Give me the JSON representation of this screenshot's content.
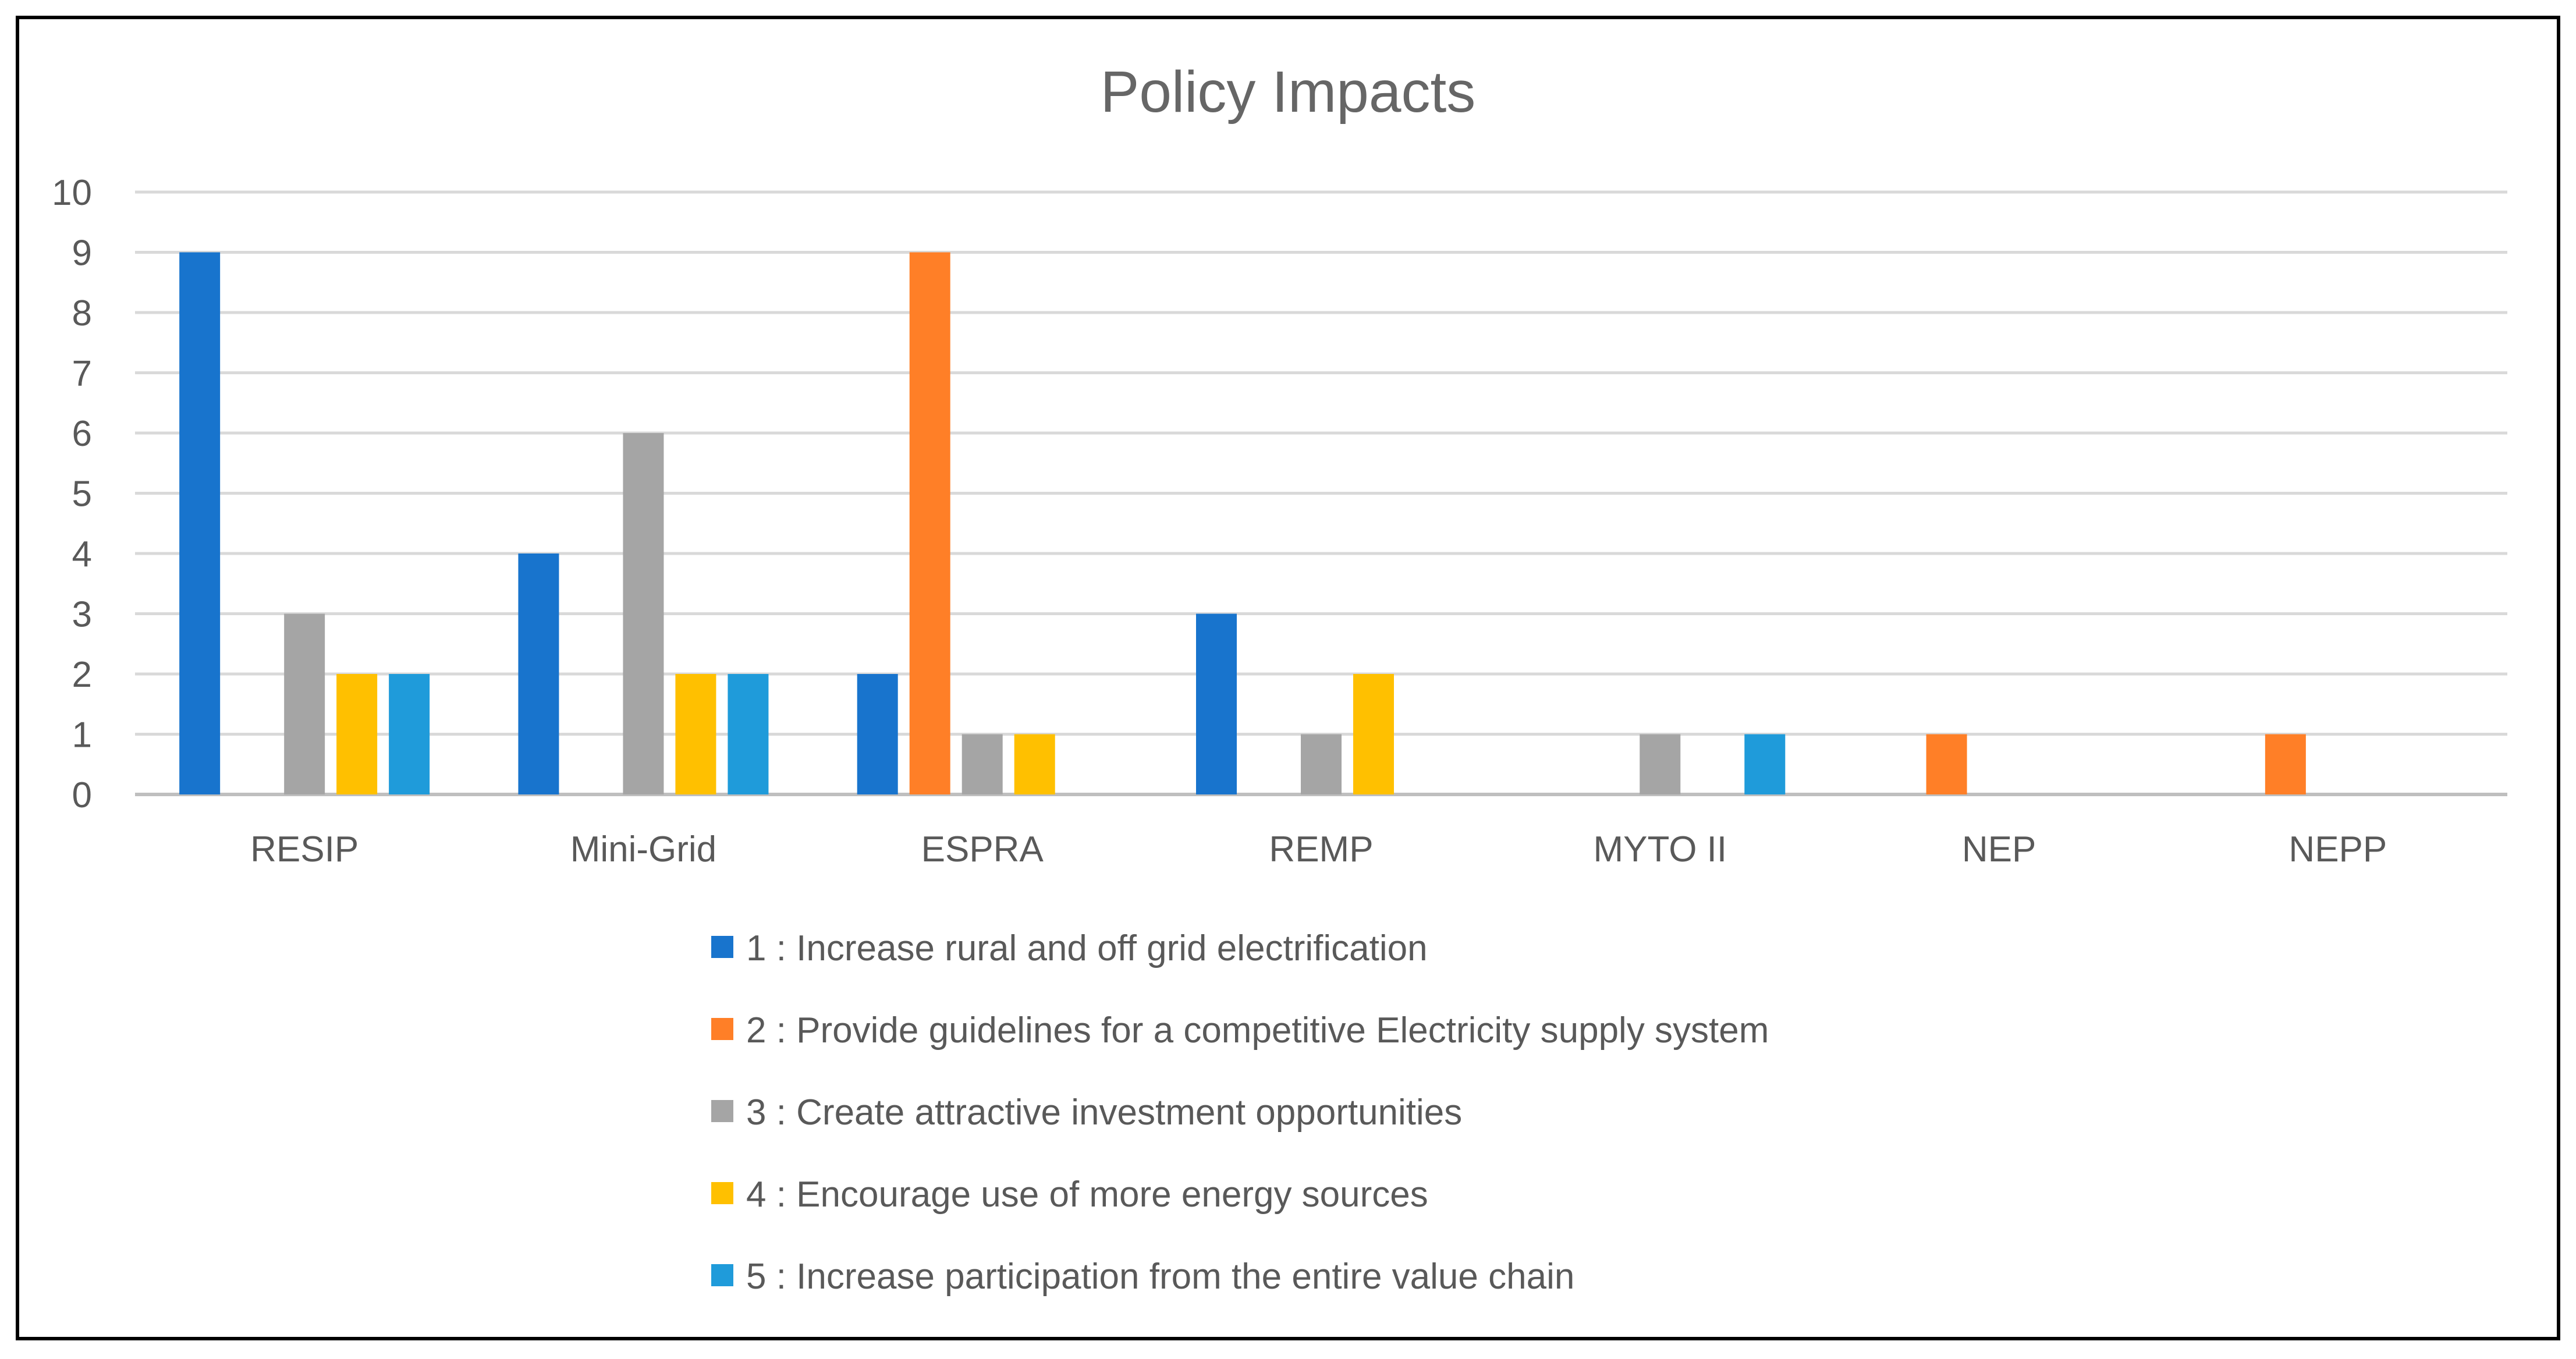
{
  "chart_data": {
    "type": "bar",
    "title": "Policy Impacts",
    "xlabel": "",
    "ylabel": "",
    "ylim": [
      0,
      10
    ],
    "yticks": [
      0,
      1,
      2,
      3,
      4,
      5,
      6,
      7,
      8,
      9,
      10
    ],
    "grid": true,
    "legend_position": "bottom",
    "categories": [
      "RESIP",
      "Mini-Grid",
      "ESPRA",
      "REMP",
      "MYTO II",
      "NEP",
      "NEPP"
    ],
    "series": [
      {
        "name": "1 : Increase rural and off grid electrification",
        "color": "#1874CD",
        "values": [
          9,
          4,
          2,
          3,
          0,
          0,
          0
        ]
      },
      {
        "name": "2 : Provide guidelines for a competitive Electricity supply system",
        "color": "#FF7F27",
        "values": [
          0,
          0,
          9,
          0,
          0,
          1,
          1
        ]
      },
      {
        "name": "3 : Create attractive investment opportunities",
        "color": "#A5A5A5",
        "values": [
          3,
          6,
          1,
          1,
          1,
          0,
          0
        ]
      },
      {
        "name": "4 : Encourage use of more energy sources",
        "color": "#FFC000",
        "values": [
          2,
          2,
          1,
          2,
          0,
          0,
          0
        ]
      },
      {
        "name": "5 : Increase participation from the entire value chain",
        "color": "#1F9BDA",
        "values": [
          2,
          2,
          0,
          0,
          1,
          0,
          0
        ]
      }
    ]
  }
}
